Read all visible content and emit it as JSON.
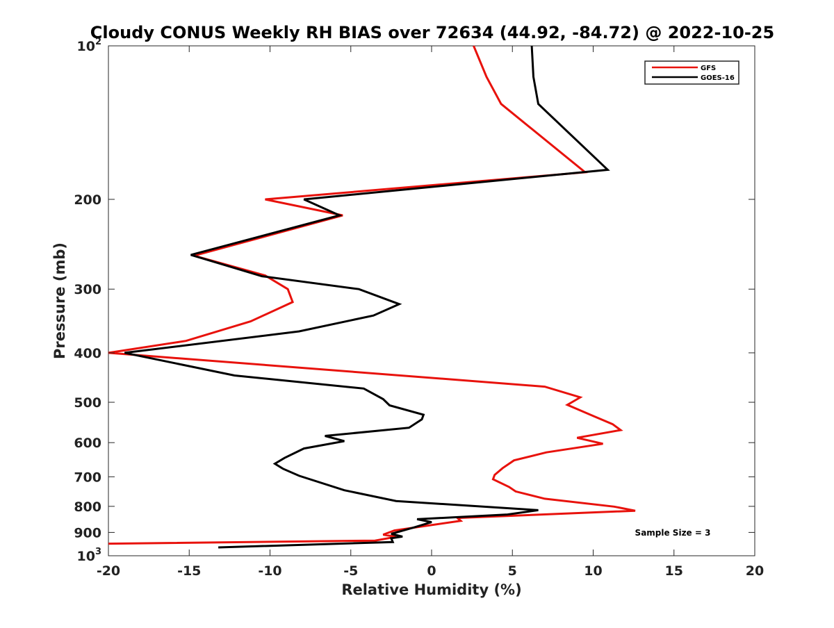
{
  "chart_data": {
    "type": "line",
    "title": "Cloudy CONUS Weekly RH BIAS over 72634 (44.92, -84.72) @ 2022-10-25",
    "xlabel": "Relative Humidity (%)",
    "ylabel": "Pressure (mb)",
    "xlim": [
      -20,
      20
    ],
    "ylim": [
      100,
      1000
    ],
    "y_scale": "log",
    "y_reversed": true,
    "x_ticks": [
      -20,
      -15,
      -10,
      -5,
      0,
      5,
      10,
      15,
      20
    ],
    "x_tick_labels": [
      "-20",
      "-15",
      "-10",
      "-5",
      "0",
      "5",
      "10",
      "15",
      "20"
    ],
    "y_ticks": [
      100,
      200,
      300,
      400,
      500,
      600,
      700,
      800,
      900,
      1000
    ],
    "y_tick_labels": [
      {
        "base": "10",
        "exp": "2"
      },
      {
        "base": "200",
        "exp": ""
      },
      {
        "base": "300",
        "exp": ""
      },
      {
        "base": "400",
        "exp": ""
      },
      {
        "base": "500",
        "exp": ""
      },
      {
        "base": "600",
        "exp": ""
      },
      {
        "base": "700",
        "exp": ""
      },
      {
        "base": "800",
        "exp": ""
      },
      {
        "base": "900",
        "exp": ""
      },
      {
        "base": "10",
        "exp": "3"
      }
    ],
    "legend_position": "top-right",
    "grid": false,
    "annotation": "Sample Size = 3",
    "series": [
      {
        "name": "GFS",
        "color": "#e8120c",
        "points": [
          [
            2.6,
            100
          ],
          [
            3.4,
            115
          ],
          [
            4.3,
            130
          ],
          [
            9.5,
            177
          ],
          [
            -10.3,
            200
          ],
          [
            -5.5,
            215
          ],
          [
            -14.7,
            258
          ],
          [
            -10.3,
            282
          ],
          [
            -8.9,
            300
          ],
          [
            -8.6,
            318
          ],
          [
            -11.2,
            347
          ],
          [
            -15.2,
            379
          ],
          [
            -20.0,
            400
          ],
          [
            7.0,
            466
          ],
          [
            9.2,
            489
          ],
          [
            8.4,
            506
          ],
          [
            10.0,
            532
          ],
          [
            11.2,
            552
          ],
          [
            11.7,
            567
          ],
          [
            9.0,
            587
          ],
          [
            10.6,
            603
          ],
          [
            7.1,
            627
          ],
          [
            5.1,
            650
          ],
          [
            4.4,
            673
          ],
          [
            3.9,
            694
          ],
          [
            3.8,
            708
          ],
          [
            4.8,
            733
          ],
          [
            5.2,
            748
          ],
          [
            7.0,
            773
          ],
          [
            11.3,
            801
          ],
          [
            12.6,
            816
          ],
          [
            1.6,
            843
          ],
          [
            1.8,
            854
          ],
          [
            -2.3,
            892
          ],
          [
            -3.0,
            909
          ],
          [
            -2.2,
            918
          ],
          [
            -3.5,
            934
          ],
          [
            -20.0,
            947
          ]
        ]
      },
      {
        "name": "GOES-16",
        "color": "#000000",
        "points": [
          [
            6.2,
            100
          ],
          [
            6.3,
            115
          ],
          [
            6.6,
            130
          ],
          [
            10.9,
            175
          ],
          [
            -7.9,
            200
          ],
          [
            -5.7,
            215
          ],
          [
            -14.9,
            257
          ],
          [
            -10.5,
            283
          ],
          [
            -4.5,
            300
          ],
          [
            -2.0,
            321
          ],
          [
            -3.6,
            338
          ],
          [
            -8.2,
            363
          ],
          [
            -19.0,
            400
          ],
          [
            -12.2,
            443
          ],
          [
            -4.2,
            470
          ],
          [
            -3.0,
            493
          ],
          [
            -2.6,
            507
          ],
          [
            -0.5,
            529
          ],
          [
            -0.6,
            540
          ],
          [
            -1.4,
            561
          ],
          [
            -6.6,
            582
          ],
          [
            -5.4,
            596
          ],
          [
            -7.9,
            616
          ],
          [
            -9.1,
            643
          ],
          [
            -9.7,
            660
          ],
          [
            -9.2,
            675
          ],
          [
            -8.2,
            697
          ],
          [
            -5.4,
            744
          ],
          [
            -2.2,
            781
          ],
          [
            6.6,
            814
          ],
          [
            4.7,
            830
          ],
          [
            -0.9,
            848
          ],
          [
            0.0,
            859
          ],
          [
            -1.1,
            880
          ],
          [
            -2.5,
            906
          ],
          [
            -1.8,
            917
          ],
          [
            -2.5,
            924
          ],
          [
            -2.4,
            940
          ],
          [
            -13.2,
            963
          ]
        ]
      }
    ]
  }
}
